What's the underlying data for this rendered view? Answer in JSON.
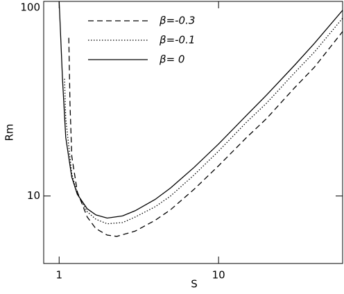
{
  "chart_data": {
    "type": "line",
    "xlabel": "S",
    "ylabel": "Rm",
    "xscale": "log",
    "yscale": "log",
    "xlim": [
      0.8,
      60
    ],
    "ylim": [
      4.5,
      100
    ],
    "xticks": [
      1,
      10
    ],
    "yticks": [
      10,
      100
    ],
    "series": [
      {
        "name": "β=-0.3",
        "color": "#000000",
        "dash": "8,5",
        "x": [
          1.15,
          1.17,
          1.2,
          1.3,
          1.5,
          1.7,
          2,
          2.3,
          3,
          4,
          5,
          7,
          10,
          15,
          20,
          30,
          40,
          60
        ],
        "values": [
          65,
          30,
          16,
          10.5,
          7.8,
          6.8,
          6.3,
          6.2,
          6.6,
          7.5,
          8.5,
          10.8,
          14.3,
          20,
          25,
          36,
          46,
          70
        ]
      },
      {
        "name": "β=-0.1",
        "color": "#000000",
        "dash": "1.5,2.5",
        "x": [
          1.08,
          1.1,
          1.2,
          1.3,
          1.5,
          1.7,
          2,
          2.5,
          3,
          4,
          5,
          7,
          10,
          15,
          20,
          30,
          40,
          60
        ],
        "values": [
          40,
          25,
          13,
          10.3,
          8.3,
          7.6,
          7.2,
          7.3,
          7.8,
          8.8,
          10,
          12.8,
          17,
          24,
          30,
          43,
          55,
          82
        ]
      },
      {
        "name": "β= 0",
        "color": "#000000",
        "dash": "none",
        "x": [
          1.0,
          1.05,
          1.1,
          1.2,
          1.3,
          1.5,
          1.7,
          2.0,
          2.5,
          3,
          4,
          5,
          7,
          10,
          15,
          20,
          30,
          40,
          60
        ],
        "values": [
          100,
          40,
          20,
          12.5,
          10.2,
          8.6,
          8.0,
          7.7,
          7.9,
          8.4,
          9.6,
          11,
          14,
          18.5,
          26,
          33,
          47,
          61,
          90
        ]
      }
    ]
  }
}
